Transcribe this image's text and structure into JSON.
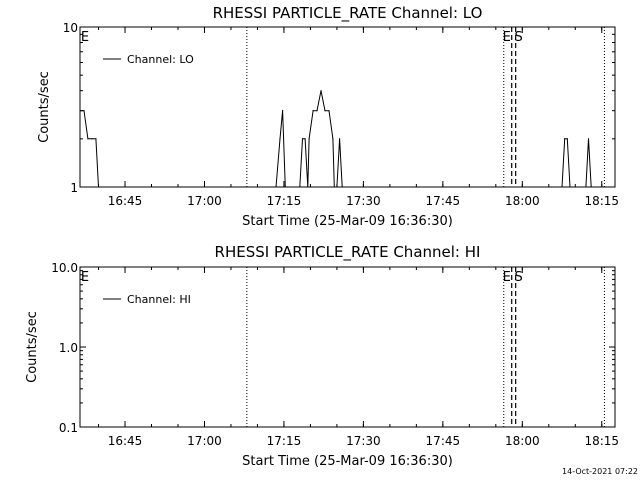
{
  "chart_data": [
    {
      "type": "line",
      "title": "RHESSI PARTICLE_RATE Channel: LO",
      "xlabel": "Start Time (25-Mar-09 16:36:30)",
      "ylabel": "Counts/sec",
      "yscale": "log",
      "ylim": [
        1,
        10
      ],
      "xlim": [
        "16:36:30",
        "18:17:30"
      ],
      "x_ticks": [
        "16:45",
        "17:00",
        "17:15",
        "17:30",
        "17:45",
        "18:00",
        "18:15"
      ],
      "y_ticks": [
        "1",
        "10"
      ],
      "legend": "top-left",
      "series": [
        {
          "name": "Channel: LO",
          "points": [
            [
              "16:36:30",
              3
            ],
            [
              "16:37:15",
              3
            ],
            [
              "16:38:00",
              2
            ],
            [
              "16:38:45",
              2
            ],
            [
              "16:39:30",
              2
            ],
            [
              "16:40:00",
              1
            ],
            [
              "17:13:30",
              1
            ],
            [
              "17:14:15",
              2
            ],
            [
              "17:14:45",
              3
            ],
            [
              "17:15:15",
              1
            ],
            [
              "17:18:00",
              1
            ],
            [
              "17:18:30",
              2
            ],
            [
              "17:19:00",
              2
            ],
            [
              "17:19:30",
              1
            ],
            [
              "17:19:45",
              2
            ],
            [
              "17:20:30",
              3
            ],
            [
              "17:21:15",
              3
            ],
            [
              "17:22:00",
              4
            ],
            [
              "17:22:45",
              3
            ],
            [
              "17:23:30",
              3
            ],
            [
              "17:24:15",
              2
            ],
            [
              "17:24:30",
              1
            ],
            [
              "17:25:00",
              1
            ],
            [
              "17:25:30",
              2
            ],
            [
              "17:26:00",
              1
            ],
            [
              "18:07:30",
              1
            ],
            [
              "18:08:00",
              2
            ],
            [
              "18:08:30",
              2
            ],
            [
              "18:09:00",
              1
            ],
            [
              "18:12:00",
              1
            ],
            [
              "18:12:30",
              2
            ],
            [
              "18:13:00",
              1
            ]
          ]
        }
      ],
      "markers": [
        {
          "time": "17:08:00",
          "style": "dotted",
          "label": ""
        },
        {
          "time": "17:56:30",
          "style": "dotted",
          "label": "E"
        },
        {
          "time": "17:58:00",
          "style": "dashed",
          "label": ""
        },
        {
          "time": "17:58:45",
          "style": "dashed",
          "label": "S"
        },
        {
          "time": "18:15:30",
          "style": "dotted",
          "label": ""
        }
      ],
      "corner_label": "E"
    },
    {
      "type": "line",
      "title": "RHESSI PARTICLE_RATE Channel: HI",
      "xlabel": "Start Time (25-Mar-09 16:36:30)",
      "ylabel": "Counts/sec",
      "yscale": "log",
      "ylim": [
        0.1,
        10
      ],
      "xlim": [
        "16:36:30",
        "18:17:30"
      ],
      "x_ticks": [
        "16:45",
        "17:00",
        "17:15",
        "17:30",
        "17:45",
        "18:00",
        "18:15"
      ],
      "y_ticks": [
        "0.1",
        "1.0",
        "10.0"
      ],
      "legend": "top-left",
      "series": [
        {
          "name": "Channel: HI",
          "points": []
        }
      ],
      "markers": [
        {
          "time": "17:08:00",
          "style": "dotted",
          "label": ""
        },
        {
          "time": "17:56:30",
          "style": "dotted",
          "label": "E"
        },
        {
          "time": "17:58:00",
          "style": "dashed",
          "label": ""
        },
        {
          "time": "17:58:45",
          "style": "dashed",
          "label": "S"
        },
        {
          "time": "18:15:30",
          "style": "dotted",
          "label": ""
        }
      ],
      "corner_label": "E"
    }
  ],
  "timestamp": "14-Oct-2021 07:22"
}
